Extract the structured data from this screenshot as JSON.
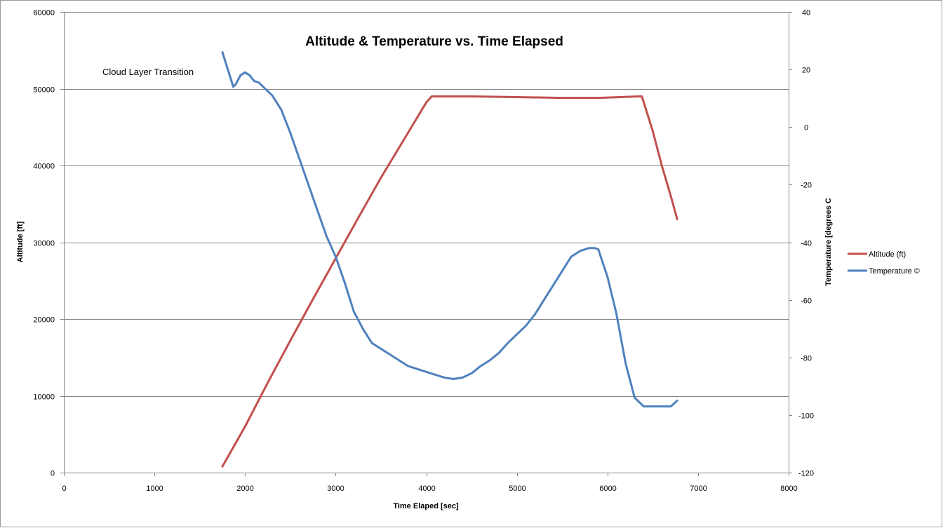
{
  "chart_data": {
    "type": "line",
    "title": "Altitude & Temperature vs. Time Elapsed",
    "xlabel": "Time Elaped  [sec]",
    "ylabel_left": "Altitude [ft]",
    "ylabel_right": "Temperature [degrees C",
    "annotation": "Cloud Layer Transition",
    "xlim": [
      0,
      8000
    ],
    "xticks": [
      0,
      1000,
      2000,
      3000,
      4000,
      5000,
      6000,
      7000,
      8000
    ],
    "ylim_left": [
      0,
      60000
    ],
    "yticks_left": [
      0,
      10000,
      20000,
      30000,
      40000,
      50000,
      60000
    ],
    "ylim_right": [
      -120,
      40
    ],
    "yticks_right": [
      -120,
      -100,
      -80,
      -60,
      -40,
      -20,
      0,
      20,
      40
    ],
    "grid": "horizontal",
    "legend_position": "right",
    "series": [
      {
        "name": "Altitude (ft)",
        "axis": "left",
        "color": "#C0504D",
        "x": [
          1750,
          2000,
          2250,
          2500,
          2750,
          3000,
          3250,
          3500,
          3750,
          4000,
          4060,
          4500,
          5000,
          5500,
          5900,
          6350,
          6380,
          6500,
          6600,
          6700,
          6770
        ],
        "y": [
          800,
          6000,
          11700,
          17200,
          22600,
          27900,
          33200,
          38400,
          43300,
          48200,
          49000,
          49000,
          48900,
          48800,
          48800,
          49000,
          49000,
          44500,
          40000,
          36000,
          33000
        ]
      },
      {
        "name": "Temperature ©",
        "axis": "right",
        "color": "#4F81BD",
        "x": [
          1750,
          1800,
          1850,
          1870,
          1900,
          1950,
          2000,
          2050,
          2100,
          2150,
          2200,
          2300,
          2400,
          2500,
          2600,
          2700,
          2800,
          2900,
          3000,
          3100,
          3200,
          3300,
          3400,
          3500,
          3600,
          3700,
          3800,
          3900,
          4000,
          4100,
          4200,
          4300,
          4400,
          4500,
          4600,
          4700,
          4800,
          4900,
          5000,
          5100,
          5200,
          5300,
          5400,
          5500,
          5600,
          5700,
          5800,
          5860,
          5900,
          6000,
          6100,
          6200,
          6300,
          6400,
          6450,
          6500,
          6600,
          6700,
          6770
        ],
        "y": [
          26,
          21,
          16,
          14,
          15,
          18,
          19,
          18,
          16,
          15.5,
          14,
          11,
          6,
          -2,
          -11,
          -20,
          -29,
          -38,
          -45,
          -54,
          -64,
          -70,
          -75,
          -77,
          -79,
          -81,
          -83,
          -84,
          -85,
          -86,
          -87,
          -87.5,
          -87,
          -85.5,
          -83,
          -81,
          -78.5,
          -75,
          -72,
          -69,
          -65,
          -60,
          -55,
          -50,
          -45,
          -43,
          -42,
          -42,
          -42.5,
          -52,
          -65,
          -82,
          -94,
          -97,
          -97,
          -97,
          -97,
          -97,
          -95
        ]
      }
    ]
  }
}
